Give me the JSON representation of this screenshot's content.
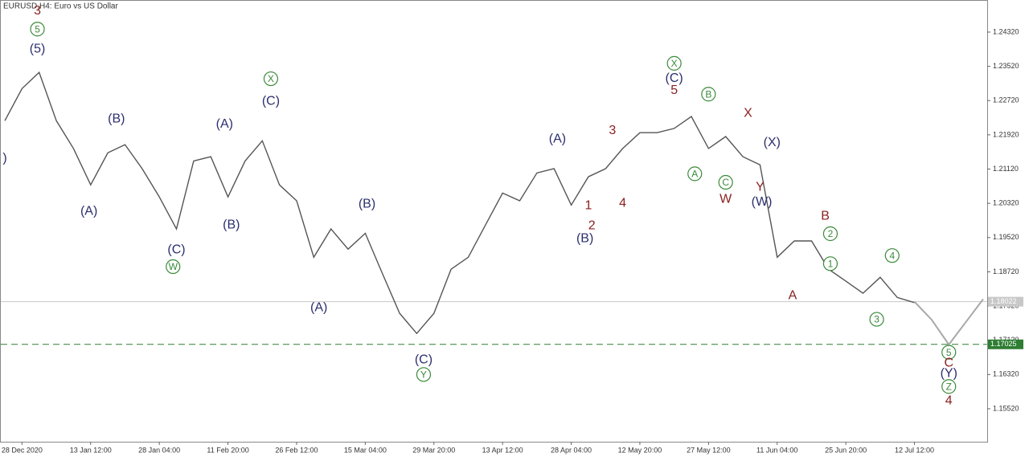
{
  "chart_data": {
    "type": "line",
    "title": "EURUSD,H4:  Euro vs US Dollar",
    "categories": [
      null,
      "28 Dec 2020",
      null,
      null,
      null,
      "13 Jan 12:00",
      null,
      null,
      null,
      "28 Jan 04:00",
      null,
      null,
      null,
      "11 Feb 20:00",
      null,
      null,
      null,
      "26 Feb 12:00",
      null,
      null,
      null,
      "15 Mar 04:00",
      null,
      null,
      null,
      "29 Mar 20:00",
      null,
      null,
      null,
      "13 Apr 12:00",
      null,
      null,
      null,
      "28 Apr 04:00",
      null,
      null,
      null,
      "12 May 20:00",
      null,
      null,
      null,
      "27 May 12:00",
      null,
      null,
      null,
      "11 Jun 04:00",
      null,
      null,
      null,
      "25 Jun 20:00",
      null,
      null,
      null,
      "12 Jul 12:00",
      null,
      null,
      null,
      null
    ],
    "series": [
      {
        "color": "#555555",
        "values": [
          1.2225,
          1.23,
          1.2338,
          1.2225,
          1.216,
          1.2075,
          1.215,
          1.2169,
          1.2113,
          1.2047,
          1.1972,
          1.2131,
          1.2141,
          1.2047,
          1.2131,
          1.2178,
          1.2075,
          1.2038,
          1.1906,
          1.1972,
          1.1925,
          1.1962,
          1.1868,
          1.1775,
          1.1728,
          1.1775,
          1.1878,
          1.1906,
          1.1981,
          1.2056,
          1.2038,
          1.2103,
          1.2113,
          1.2028,
          1.2094,
          1.2113,
          1.216,
          1.2197,
          1.2197,
          1.2207,
          1.2235,
          1.216,
          1.2188,
          1.2141,
          1.2122,
          1.1906,
          1.1944,
          1.1944,
          1.1878,
          1.185,
          1.1822,
          1.1859,
          1.1812,
          1.18,
          null,
          null,
          null,
          null
        ]
      },
      {
        "color": "#a8a8a8",
        "values": [
          null,
          null,
          null,
          null,
          null,
          null,
          null,
          null,
          null,
          null,
          null,
          null,
          null,
          null,
          null,
          null,
          null,
          null,
          null,
          null,
          null,
          null,
          null,
          null,
          null,
          null,
          null,
          null,
          null,
          null,
          null,
          null,
          null,
          null,
          null,
          null,
          null,
          null,
          null,
          null,
          null,
          null,
          null,
          null,
          null,
          null,
          null,
          null,
          null,
          null,
          null,
          null,
          null,
          1.1802,
          1.176,
          1.1702,
          1.1755,
          1.1808
        ]
      }
    ],
    "ylim": [
      1.1475,
      1.2507
    ],
    "yticks": [
      {
        "value": 1.1552,
        "label": "1.15520"
      },
      {
        "value": 1.1632,
        "label": "1.16320"
      },
      {
        "value": 1.1712,
        "label": "1.17120"
      },
      {
        "value": 1.1792,
        "label": "1.17920"
      },
      {
        "value": 1.1872,
        "label": "1.18720"
      },
      {
        "value": 1.1952,
        "label": "1.19520"
      },
      {
        "value": 1.2032,
        "label": "1.20320"
      },
      {
        "value": 1.2112,
        "label": "1.21120"
      },
      {
        "value": 1.2192,
        "label": "1.21920"
      },
      {
        "value": 1.2272,
        "label": "1.22720"
      },
      {
        "value": 1.2352,
        "label": "1.23520"
      },
      {
        "value": 1.2432,
        "label": "1.24320"
      }
    ],
    "hlines": [
      {
        "value": 1.18022,
        "color": "#c8c8c8",
        "dashed": false
      },
      {
        "value": 1.17025,
        "color": "#2e7d32",
        "dashed": true
      }
    ],
    "annotations": [
      {
        "text": "3",
        "x": 1.9,
        "y": 1.2483,
        "color": "#8b2020",
        "circled": false
      },
      {
        "text": "5",
        "x": 1.9,
        "y": 1.2439,
        "color": "#3a8a3a",
        "circled": true
      },
      {
        "text": "(5)",
        "x": 1.9,
        "y": 1.2394,
        "color": "#2b2f6e",
        "circled": false
      },
      {
        "text": ")",
        "x": 0,
        "y": 1.2139,
        "color": "#2b2f6e",
        "circled": false
      },
      {
        "text": "(A)",
        "x": 4.9,
        "y": 1.2015,
        "color": "#2b2f6e",
        "circled": false
      },
      {
        "text": "(B)",
        "x": 6.5,
        "y": 1.2231,
        "color": "#2b2f6e",
        "circled": false
      },
      {
        "text": "(C)",
        "x": 10.0,
        "y": 1.1925,
        "color": "#2b2f6e",
        "circled": false
      },
      {
        "text": "W",
        "x": 9.8,
        "y": 1.1884,
        "color": "#3a8a3a",
        "circled": true
      },
      {
        "text": "(A)",
        "x": 12.8,
        "y": 1.2218,
        "color": "#2b2f6e",
        "circled": false
      },
      {
        "text": "(B)",
        "x": 13.2,
        "y": 1.1983,
        "color": "#2b2f6e",
        "circled": false
      },
      {
        "text": "X",
        "x": 15.5,
        "y": 1.2323,
        "color": "#3a8a3a",
        "circled": true
      },
      {
        "text": "(C)",
        "x": 15.5,
        "y": 1.2272,
        "color": "#2b2f6e",
        "circled": false
      },
      {
        "text": "(A)",
        "x": 18.3,
        "y": 1.179,
        "color": "#2b2f6e",
        "circled": false
      },
      {
        "text": "(B)",
        "x": 21.1,
        "y": 1.2032,
        "color": "#2b2f6e",
        "circled": false
      },
      {
        "text": "(C)",
        "x": 24.4,
        "y": 1.1668,
        "color": "#2b2f6e",
        "circled": false
      },
      {
        "text": "Y",
        "x": 24.4,
        "y": 1.1632,
        "color": "#3a8a3a",
        "circled": true
      },
      {
        "text": "(A)",
        "x": 32.2,
        "y": 1.2184,
        "color": "#2b2f6e",
        "circled": false
      },
      {
        "text": "1",
        "x": 34.0,
        "y": 1.2028,
        "color": "#8b2020",
        "circled": false
      },
      {
        "text": "2",
        "x": 34.2,
        "y": 1.1981,
        "color": "#8b2020",
        "circled": false
      },
      {
        "text": "(B)",
        "x": 33.8,
        "y": 1.1951,
        "color": "#2b2f6e",
        "circled": false
      },
      {
        "text": "3",
        "x": 35.4,
        "y": 1.2203,
        "color": "#8b2020",
        "circled": false
      },
      {
        "text": "4",
        "x": 36.0,
        "y": 1.2034,
        "color": "#8b2020",
        "circled": false
      },
      {
        "text": "X",
        "x": 39.0,
        "y": 1.2359,
        "color": "#3a8a3a",
        "circled": true
      },
      {
        "text": "(C)",
        "x": 39.0,
        "y": 1.2325,
        "color": "#2b2f6e",
        "circled": false
      },
      {
        "text": "5",
        "x": 39.0,
        "y": 1.2297,
        "color": "#8b2020",
        "circled": false
      },
      {
        "text": "B",
        "x": 41.0,
        "y": 1.2287,
        "color": "#3a8a3a",
        "circled": true
      },
      {
        "text": "A",
        "x": 40.2,
        "y": 1.2101,
        "color": "#3a8a3a",
        "circled": true
      },
      {
        "text": "C",
        "x": 42.0,
        "y": 1.2081,
        "color": "#3a8a3a",
        "circled": true
      },
      {
        "text": "W",
        "x": 42.0,
        "y": 1.2043,
        "color": "#8b2020",
        "circled": false
      },
      {
        "text": "X",
        "x": 43.3,
        "y": 1.2244,
        "color": "#8b2020",
        "circled": false
      },
      {
        "text": "(X)",
        "x": 44.7,
        "y": 1.2175,
        "color": "#2b2f6e",
        "circled": false
      },
      {
        "text": "Y",
        "x": 44.0,
        "y": 1.2071,
        "color": "#8b2020",
        "circled": false
      },
      {
        "text": "(W)",
        "x": 44.1,
        "y": 1.2036,
        "color": "#2b2f6e",
        "circled": false
      },
      {
        "text": "B",
        "x": 47.8,
        "y": 1.2004,
        "color": "#8b2020",
        "circled": false
      },
      {
        "text": "2",
        "x": 48.1,
        "y": 1.1961,
        "color": "#3a8a3a",
        "circled": true
      },
      {
        "text": "1",
        "x": 48.1,
        "y": 1.1891,
        "color": "#3a8a3a",
        "circled": true
      },
      {
        "text": "A",
        "x": 45.9,
        "y": 1.1818,
        "color": "#8b2020",
        "circled": false
      },
      {
        "text": "4",
        "x": 51.7,
        "y": 1.191,
        "color": "#3a8a3a",
        "circled": true
      },
      {
        "text": "3",
        "x": 50.8,
        "y": 1.1761,
        "color": "#3a8a3a",
        "circled": true
      },
      {
        "text": "5",
        "x": 55.0,
        "y": 1.1684,
        "color": "#3a8a3a",
        "circled": true
      },
      {
        "text": "C",
        "x": 55.0,
        "y": 1.166,
        "color": "#8b2020",
        "circled": false
      },
      {
        "text": "(Y)",
        "x": 55.0,
        "y": 1.1636,
        "color": "#2b2f6e",
        "circled": false
      },
      {
        "text": "Z",
        "x": 55.0,
        "y": 1.1604,
        "color": "#3a8a3a",
        "circled": true
      },
      {
        "text": "4",
        "x": 55.0,
        "y": 1.1572,
        "color": "#8b2020",
        "circled": false
      }
    ]
  }
}
